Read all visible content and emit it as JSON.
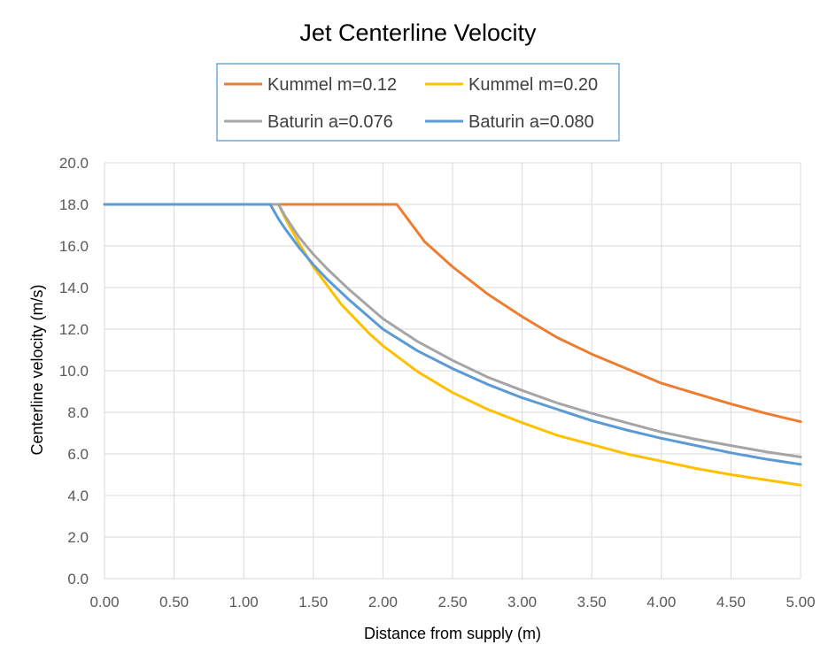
{
  "chart_data": {
    "type": "line",
    "title": "Jet Centerline Velocity",
    "xlabel": "Distance from supply (m)",
    "ylabel": "Centerline velocity (m/s)",
    "xlim": [
      0,
      5
    ],
    "ylim": [
      0,
      20
    ],
    "grid": true,
    "legend_position": "top",
    "x_ticks": [
      "0.00",
      "0.50",
      "1.00",
      "1.50",
      "2.00",
      "2.50",
      "3.00",
      "3.50",
      "4.00",
      "4.50",
      "5.00"
    ],
    "y_ticks": [
      "0.0",
      "2.0",
      "4.0",
      "6.0",
      "8.0",
      "10.0",
      "12.0",
      "14.0",
      "16.0",
      "18.0",
      "20.0"
    ],
    "series": [
      {
        "name": "Kummel m=0.12",
        "color": "#ED7D31",
        "x": [
          0,
          2.1,
          2.2,
          2.3,
          2.4,
          2.5,
          2.75,
          3.0,
          3.25,
          3.5,
          3.75,
          4.0,
          4.25,
          4.5,
          4.75,
          5.0
        ],
        "y": [
          18.0,
          18.0,
          17.1,
          16.2,
          15.6,
          15.0,
          13.7,
          12.6,
          11.6,
          10.8,
          10.1,
          9.4,
          8.9,
          8.4,
          7.95,
          7.55
        ]
      },
      {
        "name": "Kummel m=0.20",
        "color": "#FFC000",
        "x": [
          0,
          1.25,
          1.3,
          1.4,
          1.5,
          1.6,
          1.7,
          1.8,
          1.9,
          2.0,
          2.25,
          2.5,
          2.75,
          3.0,
          3.25,
          3.5,
          3.75,
          4.0,
          4.25,
          4.5,
          4.75,
          5.0
        ],
        "y": [
          18.0,
          18.0,
          17.3,
          16.1,
          15.0,
          14.1,
          13.2,
          12.5,
          11.8,
          11.2,
          9.95,
          8.95,
          8.15,
          7.5,
          6.9,
          6.45,
          6.0,
          5.65,
          5.3,
          5.0,
          4.75,
          4.5
        ]
      },
      {
        "name": "Baturin a=0.076",
        "color": "#A5A5A5",
        "x": [
          0,
          1.25,
          1.3,
          1.4,
          1.5,
          1.6,
          1.75,
          2.0,
          2.25,
          2.5,
          2.75,
          3.0,
          3.25,
          3.5,
          3.75,
          4.0,
          4.25,
          4.5,
          4.75,
          5.0
        ],
        "y": [
          18.0,
          18.0,
          17.4,
          16.4,
          15.6,
          14.9,
          13.95,
          12.5,
          11.4,
          10.5,
          9.7,
          9.05,
          8.45,
          7.95,
          7.5,
          7.05,
          6.7,
          6.4,
          6.1,
          5.85
        ]
      },
      {
        "name": "Baturin a=0.080",
        "color": "#5B9BD5",
        "x": [
          0,
          1.19,
          1.25,
          1.3,
          1.4,
          1.5,
          1.6,
          1.75,
          2.0,
          2.25,
          2.5,
          2.75,
          3.0,
          3.25,
          3.5,
          3.75,
          4.0,
          4.25,
          4.5,
          4.75,
          5.0
        ],
        "y": [
          18.0,
          18.0,
          17.3,
          16.8,
          15.9,
          15.1,
          14.4,
          13.45,
          12.0,
          10.95,
          10.1,
          9.35,
          8.7,
          8.15,
          7.6,
          7.15,
          6.75,
          6.4,
          6.05,
          5.75,
          5.5
        ]
      }
    ]
  }
}
